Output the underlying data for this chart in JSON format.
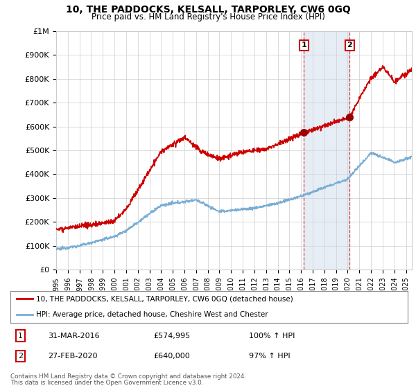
{
  "title": "10, THE PADDOCKS, KELSALL, TARPORLEY, CW6 0GQ",
  "subtitle": "Price paid vs. HM Land Registry's House Price Index (HPI)",
  "ytick_values": [
    0,
    100000,
    200000,
    300000,
    400000,
    500000,
    600000,
    700000,
    800000,
    900000,
    1000000
  ],
  "ylim": [
    0,
    1000000
  ],
  "xlim_start": 1995.0,
  "xlim_end": 2025.5,
  "x_ticks": [
    1995,
    1996,
    1997,
    1998,
    1999,
    2000,
    2001,
    2002,
    2003,
    2004,
    2005,
    2006,
    2007,
    2008,
    2009,
    2010,
    2011,
    2012,
    2013,
    2014,
    2015,
    2016,
    2017,
    2018,
    2019,
    2020,
    2021,
    2022,
    2023,
    2024,
    2025
  ],
  "hpi_color": "#7aadd4",
  "price_color": "#cc0000",
  "marker1_x": 2016.25,
  "marker1_y": 574995,
  "marker2_x": 2020.17,
  "marker2_y": 640000,
  "legend_line1": "10, THE PADDOCKS, KELSALL, TARPORLEY, CW6 0GQ (detached house)",
  "legend_line2": "HPI: Average price, detached house, Cheshire West and Chester",
  "marker1_date": "31-MAR-2016",
  "marker1_price": "£574,995",
  "marker1_hpi": "100% ↑ HPI",
  "marker2_date": "27-FEB-2020",
  "marker2_price": "£640,000",
  "marker2_hpi": "97% ↑ HPI",
  "footer1": "Contains HM Land Registry data © Crown copyright and database right 2024.",
  "footer2": "This data is licensed under the Open Government Licence v3.0.",
  "background_color": "#ffffff",
  "grid_color": "#cccccc",
  "vline_color": "#cc0000",
  "shade_color": "#c8d8e8",
  "shade_alpha": 0.45
}
